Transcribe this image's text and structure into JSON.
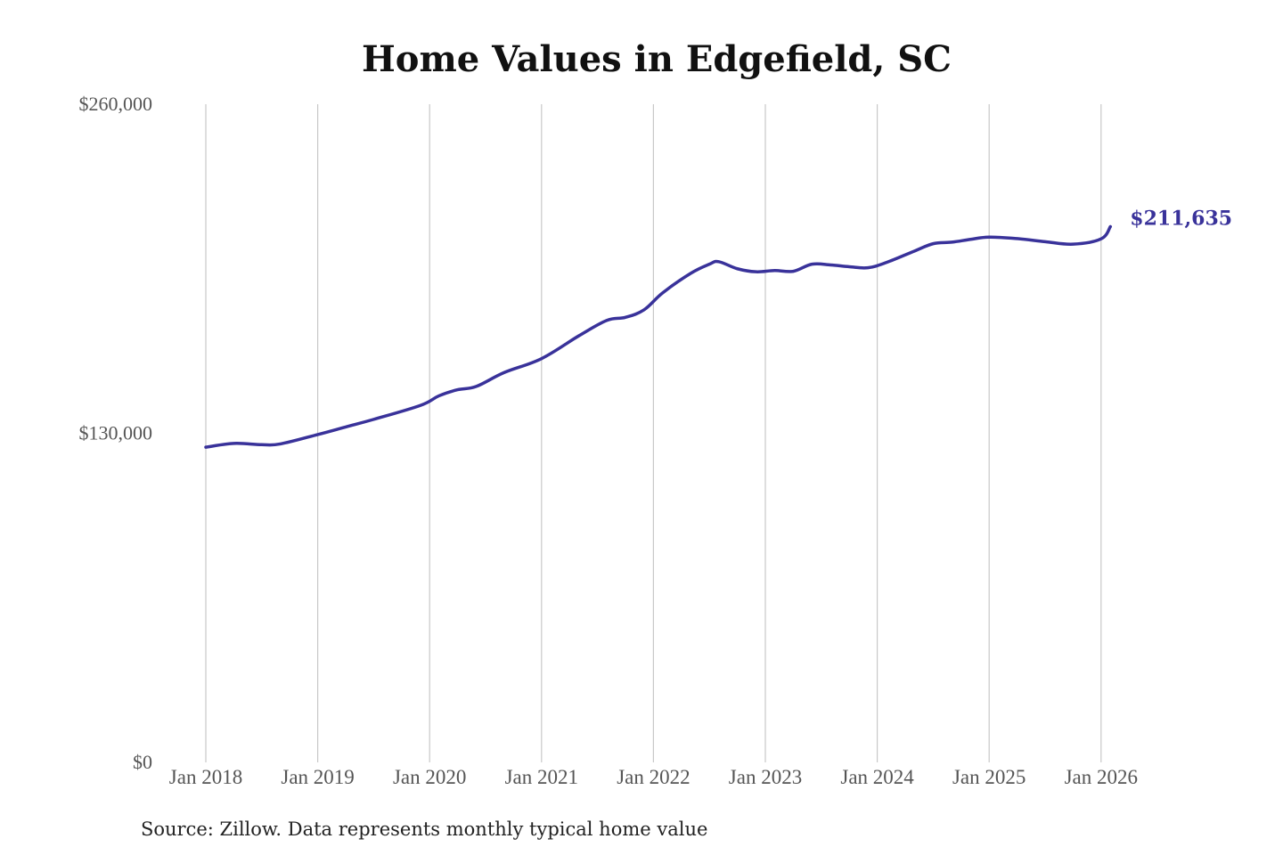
{
  "source_note": "Source: Zillow. Data represents monthly typical home value",
  "colors": {
    "series": "#39329a",
    "grid": "#c8c8c8",
    "tick_text": "#555555",
    "title_text": "#111111"
  },
  "chart_data": {
    "type": "line",
    "title": "Home Values in Edgefield, SC",
    "xlabel": "",
    "ylabel": "",
    "ylim": [
      0,
      260000
    ],
    "y_ticks": [
      0,
      130000,
      260000
    ],
    "y_tick_labels": [
      "$0",
      "$130,000",
      "$260,000"
    ],
    "x_ticks": [
      "2018-01",
      "2019-01",
      "2020-01",
      "2021-01",
      "2022-01",
      "2023-01",
      "2024-01",
      "2025-01",
      "2026-01"
    ],
    "x_tick_labels": [
      "Jan 2018",
      "Jan 2019",
      "Jan 2020",
      "Jan 2021",
      "Jan 2022",
      "Jan 2023",
      "Jan 2024",
      "Jan 2025",
      "Jan 2026"
    ],
    "grid": "vertical lines at x ticks",
    "legend": "none",
    "end_label": "$211,635",
    "series": [
      {
        "x": [
          "2018-01",
          "2018-04",
          "2018-07",
          "2018-09",
          "2019-01",
          "2019-04",
          "2019-07",
          "2019-12",
          "2020-02",
          "2020-04",
          "2020-06",
          "2020-09",
          "2021-01",
          "2021-05",
          "2021-08",
          "2021-10",
          "2021-12",
          "2022-02",
          "2022-05",
          "2022-07",
          "2022-08",
          "2022-10",
          "2022-12",
          "2023-02",
          "2023-04",
          "2023-06",
          "2023-08",
          "2023-10",
          "2023-12",
          "2024-02",
          "2024-05",
          "2024-07",
          "2024-09",
          "2024-11",
          "2025-01",
          "2025-04",
          "2025-07",
          "2025-10",
          "2026-01",
          "2026-02"
        ],
        "values": [
          124500,
          126000,
          125500,
          125800,
          129500,
          132500,
          135500,
          141000,
          144800,
          147200,
          148500,
          154000,
          159500,
          168500,
          174600,
          175800,
          178800,
          185500,
          193200,
          196800,
          197800,
          195000,
          193800,
          194300,
          194000,
          196800,
          196500,
          195800,
          195400,
          197500,
          202000,
          204900,
          205500,
          206600,
          207500,
          206900,
          205700,
          204700,
          206800,
          211635
        ]
      }
    ]
  }
}
